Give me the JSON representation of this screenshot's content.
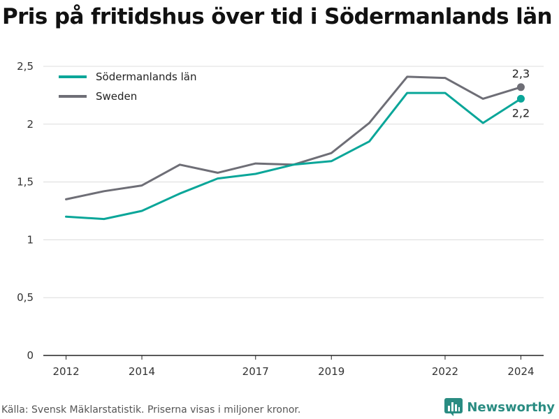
{
  "title": "Pris på fritidshus över tid i Södermanlands län",
  "source": "Källa: Svensk Mäklarstatistik. Priserna visas i miljoner kronor.",
  "brand": "Newsworthy",
  "colors": {
    "sodermanland": "#0aa699",
    "sweden": "#6e6e76",
    "grid": "#dcdcdc",
    "axis": "#222222"
  },
  "chart_data": {
    "type": "line",
    "title": "Pris på fritidshus över tid i Södermanlands län",
    "xlabel": "",
    "ylabel": "",
    "x": [
      2012,
      2013,
      2014,
      2015,
      2016,
      2017,
      2018,
      2019,
      2020,
      2021,
      2022,
      2023,
      2024
    ],
    "xticks": [
      2012,
      2014,
      2017,
      2019,
      2022,
      2024
    ],
    "xlim": [
      2011.4,
      2024.6
    ],
    "ylim": [
      0,
      2.5
    ],
    "yticks": [
      {
        "value": 0,
        "label": "0"
      },
      {
        "value": 0.5,
        "label": "0,5"
      },
      {
        "value": 1,
        "label": "1"
      },
      {
        "value": 1.5,
        "label": "1,5"
      },
      {
        "value": 2,
        "label": "2"
      },
      {
        "value": 2.5,
        "label": "2,5"
      }
    ],
    "grid": true,
    "legend": "top-left",
    "series": [
      {
        "name": "Södermanlands län",
        "color": "#0aa699",
        "values": [
          1.2,
          1.18,
          1.25,
          1.4,
          1.53,
          1.57,
          1.65,
          1.68,
          1.85,
          2.27,
          2.27,
          2.01,
          2.22
        ],
        "end_label": "2,2",
        "end_label_pos": "below"
      },
      {
        "name": "Sweden",
        "color": "#6e6e76",
        "values": [
          1.35,
          1.42,
          1.47,
          1.65,
          1.58,
          1.66,
          1.65,
          1.75,
          2.01,
          2.41,
          2.4,
          2.22,
          2.32
        ],
        "end_label": "2,3",
        "end_label_pos": "above"
      }
    ]
  }
}
